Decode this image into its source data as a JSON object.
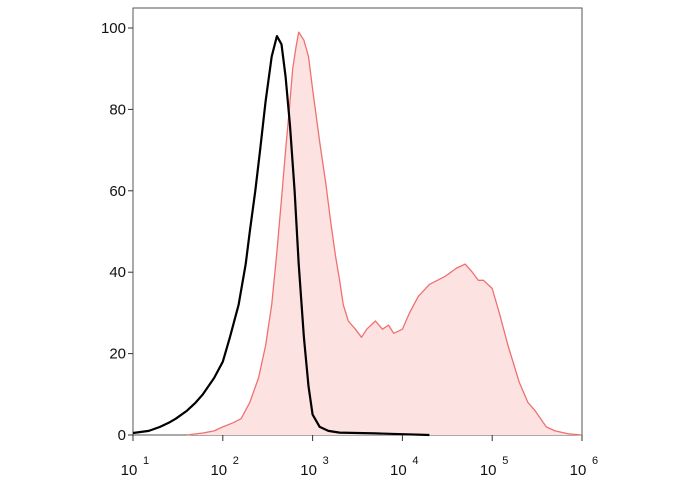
{
  "chart_data": {
    "type": "area",
    "title": "",
    "xlabel": "",
    "ylabel": "",
    "x_scale": "log",
    "xlim": [
      10,
      1000000
    ],
    "ylim": [
      0,
      100
    ],
    "grid": false,
    "legend": "none",
    "y_ticks": [
      {
        "value": 0,
        "label": "0"
      },
      {
        "value": 20,
        "label": "20"
      },
      {
        "value": 40,
        "label": "40"
      },
      {
        "value": 60,
        "label": "60"
      },
      {
        "value": 80,
        "label": "80"
      },
      {
        "value": 100,
        "label": "100"
      }
    ],
    "x_ticks": [
      {
        "value": 10,
        "base": "10",
        "exp": "1"
      },
      {
        "value": 100,
        "base": "10",
        "exp": "2"
      },
      {
        "value": 1000,
        "base": "10",
        "exp": "3"
      },
      {
        "value": 10000,
        "base": "10",
        "exp": "4"
      },
      {
        "value": 100000,
        "base": "10",
        "exp": "5"
      },
      {
        "value": 1000000,
        "base": "10",
        "exp": "6"
      }
    ],
    "series": [
      {
        "style": "filled",
        "line_color": "#f07070",
        "fill_color": "#fde2e2",
        "points": [
          [
            40,
            0
          ],
          [
            60,
            0.5
          ],
          [
            80,
            1
          ],
          [
            100,
            2
          ],
          [
            130,
            3
          ],
          [
            160,
            4
          ],
          [
            200,
            8
          ],
          [
            250,
            14
          ],
          [
            300,
            22
          ],
          [
            350,
            32
          ],
          [
            400,
            45
          ],
          [
            450,
            58
          ],
          [
            500,
            70
          ],
          [
            550,
            80
          ],
          [
            600,
            90
          ],
          [
            650,
            95
          ],
          [
            700,
            99
          ],
          [
            800,
            97
          ],
          [
            900,
            93
          ],
          [
            1000,
            85
          ],
          [
            1200,
            72
          ],
          [
            1400,
            62
          ],
          [
            1600,
            52
          ],
          [
            1800,
            44
          ],
          [
            2000,
            38
          ],
          [
            2200,
            32
          ],
          [
            2500,
            28
          ],
          [
            3000,
            26
          ],
          [
            3500,
            24
          ],
          [
            4000,
            26
          ],
          [
            5000,
            28
          ],
          [
            6000,
            26
          ],
          [
            7000,
            27
          ],
          [
            8000,
            25
          ],
          [
            10000,
            26
          ],
          [
            12000,
            30
          ],
          [
            15000,
            34
          ],
          [
            20000,
            37
          ],
          [
            30000,
            39
          ],
          [
            40000,
            41
          ],
          [
            50000,
            42
          ],
          [
            60000,
            40
          ],
          [
            70000,
            38
          ],
          [
            80000,
            38
          ],
          [
            100000,
            36
          ],
          [
            120000,
            30
          ],
          [
            150000,
            22
          ],
          [
            200000,
            13
          ],
          [
            250000,
            8
          ],
          [
            300000,
            6
          ],
          [
            400000,
            2
          ],
          [
            500000,
            1
          ],
          [
            700000,
            0.3
          ],
          [
            1000000,
            0
          ]
        ]
      },
      {
        "style": "line",
        "line_color": "#000000",
        "points": [
          [
            10,
            0.5
          ],
          [
            15,
            1
          ],
          [
            20,
            2
          ],
          [
            25,
            3
          ],
          [
            30,
            4
          ],
          [
            40,
            6
          ],
          [
            50,
            8
          ],
          [
            60,
            10
          ],
          [
            80,
            14
          ],
          [
            100,
            18
          ],
          [
            120,
            24
          ],
          [
            150,
            32
          ],
          [
            180,
            42
          ],
          [
            200,
            50
          ],
          [
            230,
            60
          ],
          [
            260,
            70
          ],
          [
            300,
            82
          ],
          [
            350,
            93
          ],
          [
            400,
            98
          ],
          [
            450,
            96
          ],
          [
            500,
            88
          ],
          [
            560,
            76
          ],
          [
            630,
            60
          ],
          [
            700,
            42
          ],
          [
            800,
            24
          ],
          [
            900,
            12
          ],
          [
            1000,
            5
          ],
          [
            1200,
            2
          ],
          [
            1500,
            1
          ],
          [
            2000,
            0.6
          ],
          [
            5000,
            0.4
          ],
          [
            10000,
            0.2
          ],
          [
            20000,
            0
          ]
        ]
      }
    ]
  }
}
